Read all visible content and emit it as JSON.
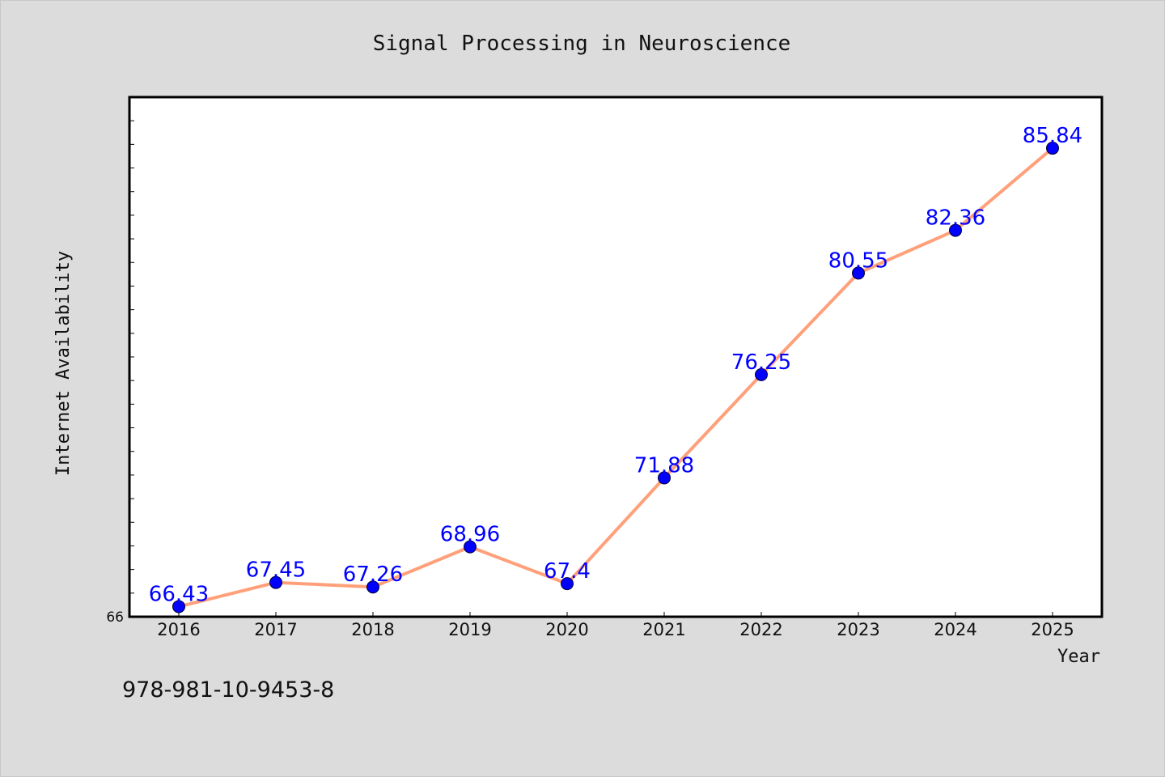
{
  "footer": {
    "code": "978-981-10-9453-8"
  },
  "colors": {
    "background": "#dcdcdc",
    "plot_background": "#ffffff",
    "line": "#ffa07a",
    "marker": "#0000ff",
    "data_label": "#0000ff",
    "text": "#111111"
  },
  "chart_data": {
    "type": "line",
    "title": "Signal Processing in Neuroscience",
    "xlabel": "Year",
    "ylabel": "Internet Availability",
    "categories": [
      "2016",
      "2017",
      "2018",
      "2019",
      "2020",
      "2021",
      "2022",
      "2023",
      "2024",
      "2025"
    ],
    "series": [
      {
        "values": [
          66.43,
          67.45,
          67.26,
          68.96,
          67.4,
          71.88,
          76.25,
          80.55,
          82.36,
          85.84
        ],
        "data_labels": [
          "66.43",
          "67.45",
          "67.26",
          "68.96",
          "67.4",
          "71.88",
          "76.25",
          "80.55",
          "82.36",
          "85.84"
        ]
      }
    ],
    "ylim": [
      66,
      88
    ],
    "y_tick_labels": [
      "66"
    ],
    "y_minor_tick_step": 1,
    "grid": false,
    "legend": "none"
  }
}
